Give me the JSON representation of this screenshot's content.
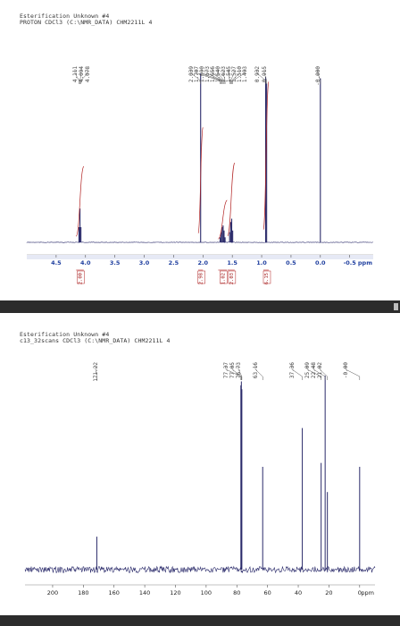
{
  "h1": {
    "title": "Esterification Unknown #4",
    "subtitle": "PROTON CDCl3 (C:\\NMR_DATA) CHM2211L 4"
  },
  "c13": {
    "title": "Esterification Unknown #4",
    "subtitle": "c13_32scans CDCl3 (C:\\NMR_DATA) CHM2211L 4"
  },
  "colors": {
    "spectrum": "#2a2a6a",
    "integral": "#b22222",
    "axis_text": "#1f3f9f",
    "divider": "#2c2c2c"
  },
  "chart_data": [
    {
      "type": "line",
      "name": "1H NMR spectrum",
      "xlabel": "ppm",
      "xlim": [
        5.0,
        -0.9
      ],
      "x_reversed": true,
      "xticks": [
        4.5,
        4.0,
        3.5,
        3.0,
        2.5,
        2.0,
        1.5,
        1.0,
        0.5,
        0.0,
        -0.5
      ],
      "xtick_labels": [
        "4.5",
        "4.0",
        "3.5",
        "3.0",
        "2.5",
        "2.0",
        "1.5",
        "1.0",
        "0.5",
        "0.0",
        "-0.5"
      ],
      "peaks": [
        {
          "shift": 4.111,
          "height": 0.09
        },
        {
          "shift": 4.094,
          "height": 0.2
        },
        {
          "shift": 4.078,
          "height": 0.09
        },
        {
          "shift": 2.039,
          "height": 1.0
        },
        {
          "shift": 1.707,
          "height": 0.03
        },
        {
          "shift": 1.69,
          "height": 0.06
        },
        {
          "shift": 1.673,
          "height": 0.09
        },
        {
          "shift": 1.656,
          "height": 0.1
        },
        {
          "shift": 1.64,
          "height": 0.07
        },
        {
          "shift": 1.623,
          "height": 0.03
        },
        {
          "shift": 1.545,
          "height": 0.06
        },
        {
          "shift": 1.527,
          "height": 0.12
        },
        {
          "shift": 1.51,
          "height": 0.14
        },
        {
          "shift": 1.493,
          "height": 0.07
        },
        {
          "shift": 0.932,
          "height": 0.98
        },
        {
          "shift": 0.915,
          "height": 0.94
        },
        {
          "shift": 0.0,
          "height": 0.97
        }
      ],
      "peak_labels": [
        {
          "text": "4.111",
          "shift": 4.111
        },
        {
          "text": "4.094",
          "shift": 4.094
        },
        {
          "text": "4.078",
          "shift": 4.078
        },
        {
          "text": "2.039",
          "shift": 2.039
        },
        {
          "text": "1.707",
          "shift": 1.707
        },
        {
          "text": "1.690",
          "shift": 1.69
        },
        {
          "text": "1.673",
          "shift": 1.673
        },
        {
          "text": "1.656",
          "shift": 1.656
        },
        {
          "text": "1.640",
          "shift": 1.64
        },
        {
          "text": "1.623",
          "shift": 1.623
        },
        {
          "text": "1.545",
          "shift": 1.545
        },
        {
          "text": "1.527",
          "shift": 1.527
        },
        {
          "text": "1.510",
          "shift": 1.51
        },
        {
          "text": "1.493",
          "shift": 1.493
        },
        {
          "text": "0.932",
          "shift": 0.932
        },
        {
          "text": "0.915",
          "shift": 0.915
        },
        {
          "text": "-0.000",
          "shift": 0.0
        }
      ],
      "integrations": [
        {
          "from": 4.16,
          "to": 4.03,
          "value": "2.00",
          "rise": 0.45
        },
        {
          "from": 2.08,
          "to": 2.0,
          "value": "2.98",
          "rise": 0.68
        },
        {
          "from": 1.74,
          "to": 1.59,
          "value": "1.02",
          "rise": 0.25
        },
        {
          "from": 1.58,
          "to": 1.46,
          "value": "2.03",
          "rise": 0.47
        },
        {
          "from": 0.97,
          "to": 0.88,
          "value": "6.15",
          "rise": 0.95
        }
      ]
    },
    {
      "type": "line",
      "name": "13C NMR spectrum",
      "xlabel": "ppm",
      "xlim": [
        218,
        -10
      ],
      "x_reversed": true,
      "xticks": [
        200,
        180,
        160,
        140,
        120,
        100,
        80,
        60,
        40,
        20,
        0
      ],
      "xtick_labels": [
        "200",
        "180",
        "160",
        "140",
        "120",
        "100",
        "80",
        "60",
        "40",
        "20",
        "0"
      ],
      "peaks": [
        {
          "shift": 171.22,
          "height": 0.17
        },
        {
          "shift": 77.37,
          "height": 0.95
        },
        {
          "shift": 77.05,
          "height": 0.97
        },
        {
          "shift": 76.73,
          "height": 0.93
        },
        {
          "shift": 63.16,
          "height": 0.53
        },
        {
          "shift": 37.36,
          "height": 0.73
        },
        {
          "shift": 25.09,
          "height": 0.55
        },
        {
          "shift": 22.48,
          "height": 1.0
        },
        {
          "shift": 21.02,
          "height": 0.4
        },
        {
          "shift": 0.0,
          "height": 0.53
        }
      ],
      "peak_labels": [
        {
          "text": "171.22",
          "shift": 171.22
        },
        {
          "text": "77.37",
          "shift": 77.37
        },
        {
          "text": "77.05",
          "shift": 77.05
        },
        {
          "text": "76.73",
          "shift": 76.73
        },
        {
          "text": "63.16",
          "shift": 63.16
        },
        {
          "text": "37.36",
          "shift": 37.36
        },
        {
          "text": "25.09",
          "shift": 25.09
        },
        {
          "text": "22.48",
          "shift": 22.48
        },
        {
          "text": "21.02",
          "shift": 21.02
        },
        {
          "text": "-0.00",
          "shift": 0.0
        }
      ]
    }
  ]
}
